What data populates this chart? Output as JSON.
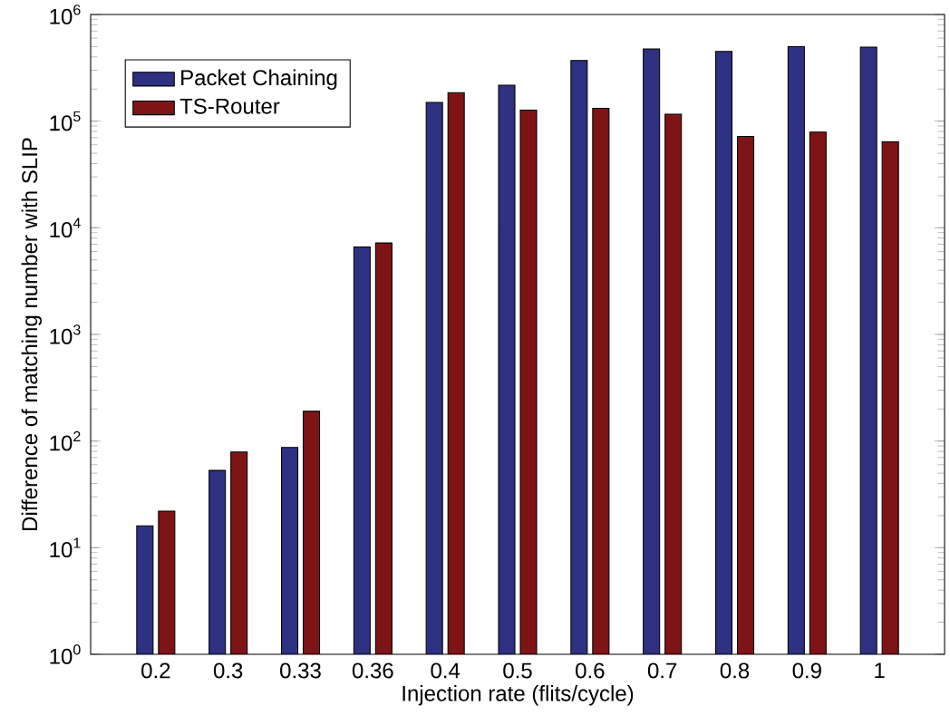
{
  "chart_data": {
    "type": "bar",
    "xlabel": "Injection rate (flits/cycle)",
    "ylabel": "Difference of matching number with SLIP",
    "categories": [
      "0.2",
      "0.3",
      "0.33",
      "0.36",
      "0.4",
      "0.5",
      "0.6",
      "0.7",
      "0.8",
      "0.9",
      "1"
    ],
    "series": [
      {
        "name": "Packet Chaining",
        "color": "#2e3182",
        "values": [
          16,
          53,
          87,
          6600,
          150000,
          217000,
          370000,
          474000,
          450000,
          500000,
          493000
        ]
      },
      {
        "name": "TS-Router",
        "color": "#7f1416",
        "values": [
          22,
          79,
          190,
          7200,
          185000,
          127000,
          132000,
          116000,
          72000,
          79000,
          64000
        ]
      }
    ],
    "log": "y",
    "ylim": [
      1,
      1000000
    ],
    "yticks": [
      {
        "value": 1,
        "label": "10$^{0}$"
      },
      {
        "value": 10,
        "label": "10$^{1}$"
      },
      {
        "value": 100,
        "label": "10$^{2}$"
      },
      {
        "value": 1000,
        "label": "10$^{3}$"
      },
      {
        "value": 10000,
        "label": "10$^{4}$"
      },
      {
        "value": 100000,
        "label": "10$^{5}$"
      },
      {
        "value": 1000000,
        "label": "10$^{6}$"
      }
    ],
    "legend": "top left",
    "grid": false
  }
}
